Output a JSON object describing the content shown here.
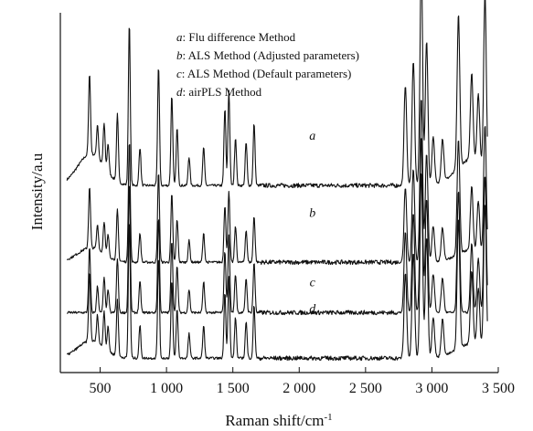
{
  "chart_data": {
    "type": "line",
    "xlabel": "Raman shift/cm",
    "xlabel_sup": "-1",
    "ylabel": "Intensity/a.u",
    "xlim": [
      200,
      3500
    ],
    "xticks": [
      500,
      1000,
      1500,
      2000,
      2500,
      3000,
      3500
    ],
    "xtick_labels": [
      "500",
      "1 000",
      "1 500",
      "2 000",
      "2 500",
      "3 000",
      "3 500"
    ],
    "x_gaps": [
      [
        1700,
        2750
      ]
    ],
    "legend": [
      {
        "letter": "a",
        "text": ": Flu difference Method"
      },
      {
        "letter": "b",
        "text": ": ALS Method (Adjusted parameters)"
      },
      {
        "letter": "c",
        "text": ": ALS Method (Default parameters)"
      },
      {
        "letter": "d",
        "text": ": airPLS Method"
      }
    ],
    "series": [
      {
        "label": "a",
        "label_x": 2100,
        "offset": 3.6,
        "baseline_hump": 0.55,
        "peak_scale": 1.0,
        "peaks": [
          [
            420,
            1.7
          ],
          [
            480,
            0.7
          ],
          [
            530,
            0.9
          ],
          [
            560,
            0.6
          ],
          [
            630,
            1.4
          ],
          [
            720,
            3.4
          ],
          [
            800,
            0.8
          ],
          [
            940,
            2.5
          ],
          [
            1040,
            1.9
          ],
          [
            1080,
            1.2
          ],
          [
            1170,
            0.6
          ],
          [
            1280,
            0.8
          ],
          [
            1440,
            1.6
          ],
          [
            1470,
            2.0
          ],
          [
            1520,
            1.0
          ],
          [
            1600,
            0.9
          ],
          [
            1660,
            1.3
          ],
          [
            2800,
            2.1
          ],
          [
            2860,
            2.6
          ],
          [
            2920,
            4.6
          ],
          [
            2960,
            3.0
          ],
          [
            3010,
            1.0
          ],
          [
            3080,
            0.9
          ],
          [
            3200,
            3.2
          ],
          [
            3300,
            1.8
          ],
          [
            3350,
            1.4
          ],
          [
            3400,
            3.6
          ]
        ]
      },
      {
        "label": "b",
        "label_x": 2100,
        "offset": 2.0,
        "baseline_hump": 0.25,
        "peak_scale": 0.75,
        "peaks": [
          [
            420,
            1.7
          ],
          [
            480,
            0.7
          ],
          [
            530,
            0.9
          ],
          [
            560,
            0.6
          ],
          [
            630,
            1.4
          ],
          [
            720,
            3.4
          ],
          [
            800,
            0.8
          ],
          [
            940,
            2.5
          ],
          [
            1040,
            1.9
          ],
          [
            1080,
            1.2
          ],
          [
            1170,
            0.6
          ],
          [
            1280,
            0.8
          ],
          [
            1440,
            1.6
          ],
          [
            1470,
            2.0
          ],
          [
            1520,
            1.0
          ],
          [
            1600,
            0.9
          ],
          [
            1660,
            1.3
          ],
          [
            2800,
            2.1
          ],
          [
            2860,
            2.6
          ],
          [
            2920,
            4.6
          ],
          [
            2960,
            3.0
          ],
          [
            3010,
            1.0
          ],
          [
            3080,
            0.9
          ],
          [
            3200,
            3.2
          ],
          [
            3300,
            1.8
          ],
          [
            3350,
            1.4
          ],
          [
            3400,
            3.6
          ]
        ]
      },
      {
        "label": "c",
        "label_x": 2100,
        "offset": 0.95,
        "baseline_hump": 0.0,
        "peak_scale": 0.8,
        "peaks": [
          [
            420,
            1.7
          ],
          [
            480,
            0.7
          ],
          [
            530,
            0.9
          ],
          [
            560,
            0.6
          ],
          [
            630,
            1.4
          ],
          [
            720,
            3.4
          ],
          [
            800,
            0.8
          ],
          [
            940,
            2.5
          ],
          [
            1040,
            1.9
          ],
          [
            1080,
            1.2
          ],
          [
            1170,
            0.6
          ],
          [
            1280,
            0.8
          ],
          [
            1440,
            1.6
          ],
          [
            1470,
            2.0
          ],
          [
            1520,
            1.0
          ],
          [
            1600,
            0.9
          ],
          [
            1660,
            1.3
          ],
          [
            2800,
            2.1
          ],
          [
            2860,
            2.6
          ],
          [
            2920,
            4.6
          ],
          [
            2960,
            3.0
          ],
          [
            3010,
            1.0
          ],
          [
            3080,
            0.9
          ],
          [
            3200,
            3.2
          ],
          [
            3300,
            1.8
          ],
          [
            3350,
            1.4
          ],
          [
            3400,
            3.6
          ]
        ]
      },
      {
        "label": "d",
        "label_x": 2100,
        "offset": 0.0,
        "baseline_hump": 0.3,
        "peak_scale": 0.85,
        "peaks": [
          [
            420,
            1.7
          ],
          [
            480,
            0.7
          ],
          [
            530,
            0.9
          ],
          [
            560,
            0.6
          ],
          [
            630,
            1.4
          ],
          [
            720,
            3.4
          ],
          [
            800,
            0.8
          ],
          [
            940,
            2.5
          ],
          [
            1040,
            1.9
          ],
          [
            1080,
            1.2
          ],
          [
            1170,
            0.6
          ],
          [
            1280,
            0.8
          ],
          [
            1440,
            1.6
          ],
          [
            1470,
            2.0
          ],
          [
            1520,
            1.0
          ],
          [
            1600,
            0.9
          ],
          [
            1660,
            1.3
          ],
          [
            2800,
            2.1
          ],
          [
            2860,
            2.6
          ],
          [
            2920,
            4.6
          ],
          [
            2960,
            3.0
          ],
          [
            3010,
            1.0
          ],
          [
            3080,
            0.9
          ],
          [
            3200,
            3.2
          ],
          [
            3300,
            1.8
          ],
          [
            3350,
            1.4
          ],
          [
            3400,
            3.6
          ]
        ]
      }
    ],
    "ylim": [
      -0.3,
      7.2
    ],
    "grid": false,
    "legend_position": "top-center",
    "line_color": "#111111"
  }
}
